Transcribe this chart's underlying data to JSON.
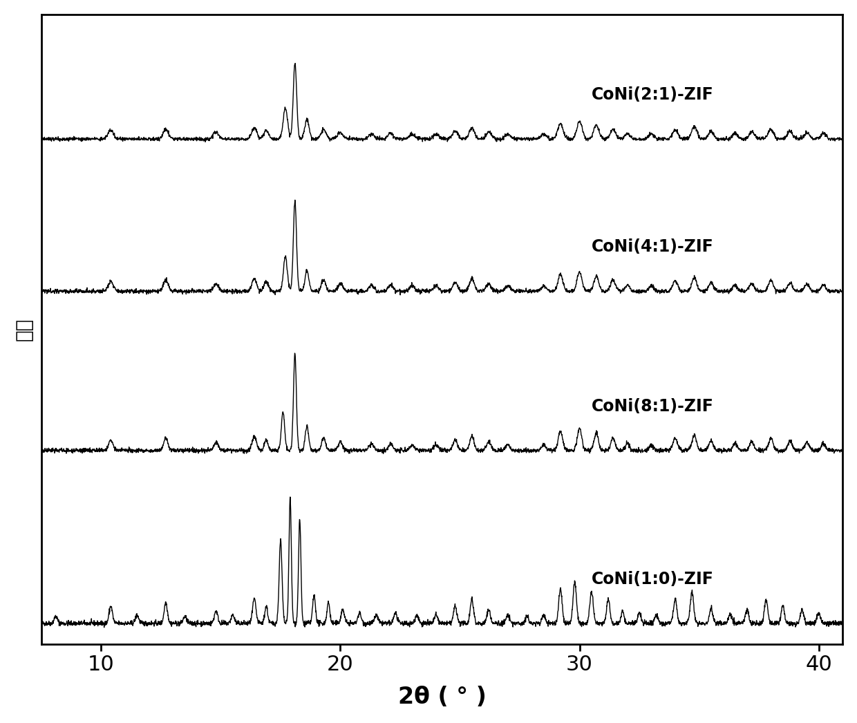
{
  "title": "",
  "xlabel": "2θ ( ° )",
  "ylabel": "强度",
  "xlim": [
    7.5,
    41
  ],
  "xticks": [
    10,
    20,
    30,
    40
  ],
  "series_labels": [
    "CoNi(1:0)-ZIF",
    "CoNi(8:1)-ZIF",
    "CoNi(4:1)-ZIF",
    "CoNi(2:1)-ZIF"
  ],
  "offsets": [
    0,
    2.5,
    4.8,
    7.0
  ],
  "background_color": "#ffffff",
  "line_color": "#000000",
  "line_width": 1.0,
  "xlabel_fontsize": 24,
  "ylabel_fontsize": 20,
  "tick_fontsize": 22,
  "label_fontsize": 17,
  "seed": 42
}
